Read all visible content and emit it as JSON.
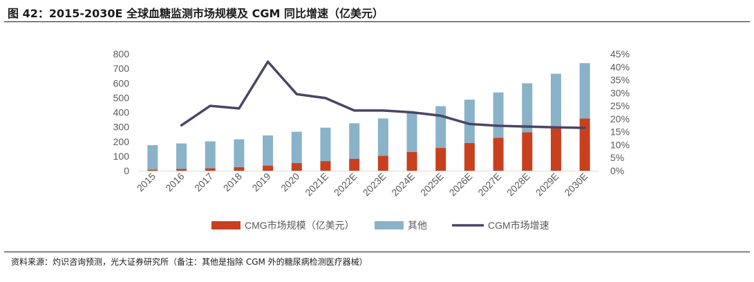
{
  "page": {
    "title": "图 42：2015-2030E 全球血糖监测市场规模及 CGM 同比增速（亿美元）",
    "source": "资料来源：灼识咨询预测，光大证券研究所（备注：其他是指除 CGM 外的糖尿病检测医疗器械）"
  },
  "chart_data": {
    "type": "bar",
    "stacked": true,
    "categories": [
      "2015",
      "2016",
      "2017",
      "2018",
      "2019",
      "2020",
      "2021E",
      "2022E",
      "2023E",
      "2024E",
      "2025E",
      "2026E",
      "2027E",
      "2028E",
      "2029E",
      "2030E"
    ],
    "series": [
      {
        "name": "CMG市场规模（亿美元）",
        "type": "bar",
        "axis": "left",
        "color": "#c9401f",
        "values": [
          8,
          12,
          17,
          24,
          35,
          52,
          66,
          82,
          103,
          128,
          156,
          190,
          226,
          263,
          306,
          358
        ]
      },
      {
        "name": "其他",
        "type": "bar",
        "axis": "left",
        "color": "#8ab2c8",
        "values": [
          167,
          175,
          184,
          191,
          207,
          215,
          229,
          243,
          255,
          272,
          286,
          297,
          310,
          336,
          358,
          379
        ]
      },
      {
        "name": "CGM市场增速",
        "type": "line",
        "axis": "right",
        "color": "#4a4466",
        "unit": "%",
        "values": [
          null,
          17.5,
          25.0,
          24.0,
          42.0,
          29.5,
          28.0,
          23.2,
          23.2,
          22.5,
          21.2,
          18.0,
          17.3,
          17.0,
          16.7,
          16.5
        ]
      }
    ],
    "y_left": {
      "min": 0,
      "max": 800,
      "step": 100,
      "ticks": [
        "0",
        "100",
        "200",
        "300",
        "400",
        "500",
        "600",
        "700",
        "800"
      ]
    },
    "y_right": {
      "min": 0,
      "max": 45,
      "step": 5,
      "ticks": [
        "0%",
        "5%",
        "10%",
        "15%",
        "20%",
        "25%",
        "30%",
        "35%",
        "40%",
        "45%"
      ]
    },
    "xlabel": "",
    "ylabel": "",
    "grid": false,
    "legend_position": "bottom"
  }
}
